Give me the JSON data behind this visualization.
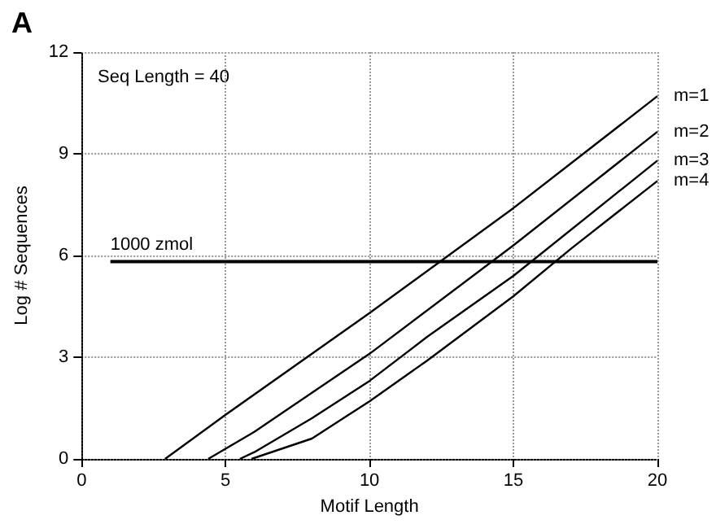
{
  "chart_data": {
    "type": "line",
    "title": "A",
    "xlabel": "Motif Length",
    "ylabel": "Log # Sequences",
    "annotations": [
      "Seq Length = 40"
    ],
    "xlim": [
      0,
      20
    ],
    "xticks": [
      0,
      5,
      10,
      15,
      20
    ],
    "ylim": [
      0,
      12
    ],
    "yticks": [
      0,
      3,
      6,
      9,
      12
    ],
    "grid": true,
    "marker": "none",
    "line_style": "solid",
    "series": [
      {
        "name": "m=1",
        "color": "#000000",
        "x": [
          2.9,
          5,
          10,
          15,
          20
        ],
        "values": [
          0,
          1.3,
          4.3,
          7.4,
          10.7
        ]
      },
      {
        "name": "m=2",
        "color": "#000000",
        "x": [
          4.4,
          6,
          10,
          15,
          20
        ],
        "values": [
          0,
          0.8,
          3.1,
          6.3,
          9.65
        ]
      },
      {
        "name": "m=3",
        "color": "#000000",
        "x": [
          5.5,
          6,
          8,
          10,
          12,
          15,
          20
        ],
        "values": [
          0,
          0.2,
          1.2,
          2.3,
          3.6,
          5.4,
          8.8
        ]
      },
      {
        "name": "m=4",
        "color": "#000000",
        "x": [
          5.9,
          8,
          10,
          12,
          15,
          17,
          20
        ],
        "values": [
          0,
          0.6,
          1.7,
          2.9,
          4.8,
          6.2,
          8.2
        ]
      },
      {
        "name": "1000 zmol",
        "color": "#000000",
        "x": [
          1,
          20
        ],
        "values": [
          5.82,
          5.82
        ]
      }
    ]
  }
}
